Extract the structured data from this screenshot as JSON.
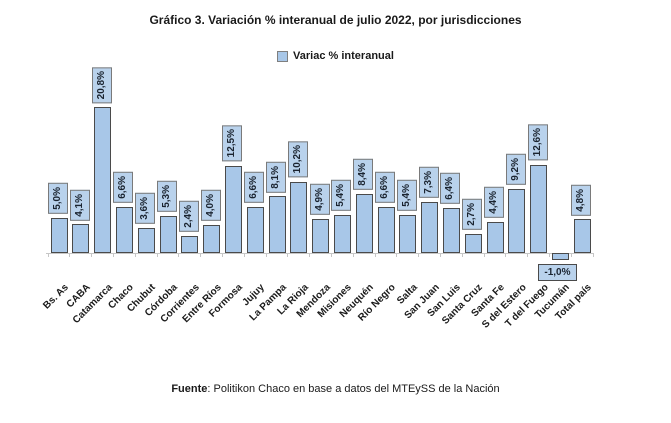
{
  "title": "Gráfico 3. Variación % interanual de julio 2022, por jurisdicciones",
  "legend": {
    "label": "Variac % interanual"
  },
  "source": {
    "label_bold": "Fuente",
    "text": ": Politikon Chaco en base a datos del MTEySS de la Nación"
  },
  "colors": {
    "bar_fill": "#a8c7e8",
    "bar_border": "#4a4a4a",
    "value_box_fill": "#b9d2ec",
    "value_box_border": "#7a7a7a",
    "axis": "#c6c6c6",
    "text": "#1a1a1a"
  },
  "chart_data": {
    "type": "bar",
    "title": "Gráfico 3. Variación % interanual de julio 2022, por jurisdicciones",
    "legend_entries": [
      "Variac % interanual"
    ],
    "legend_position": "top",
    "grid": false,
    "xlabel": "",
    "ylabel": "",
    "ylim": [
      -2,
      22
    ],
    "categories": [
      "Bs. As",
      "CABA",
      "Catamarca",
      "Chaco",
      "Chubut",
      "Córdoba",
      "Corrientes",
      "Entre Ríos",
      "Formosa",
      "Jujuy",
      "La Pampa",
      "La Rioja",
      "Mendoza",
      "Misiones",
      "Neuquén",
      "Río Negro",
      "Salta",
      "San Juan",
      "San Luis",
      "Santa Cruz",
      "Santa Fe",
      "S del Estero",
      "T del Fuego",
      "Tucumán",
      "Total país"
    ],
    "values": [
      5.0,
      4.1,
      20.8,
      6.6,
      3.6,
      5.3,
      2.4,
      4.0,
      12.5,
      6.6,
      8.1,
      10.2,
      4.9,
      5.4,
      8.4,
      6.6,
      5.4,
      7.3,
      6.4,
      2.7,
      4.4,
      9.2,
      12.6,
      -1.0,
      4.8
    ],
    "value_labels": [
      "5,0%",
      "4,1%",
      "20,8%",
      "6,6%",
      "3,6%",
      "5,3%",
      "2,4%",
      "4,0%",
      "12,5%",
      "6,6%",
      "8,1%",
      "10,2%",
      "4,9%",
      "5,4%",
      "8,4%",
      "6,6%",
      "5,4%",
      "7,3%",
      "6,4%",
      "2,7%",
      "4,4%",
      "9,2%",
      "12,6%",
      "-1,0%",
      "4,8%"
    ]
  }
}
